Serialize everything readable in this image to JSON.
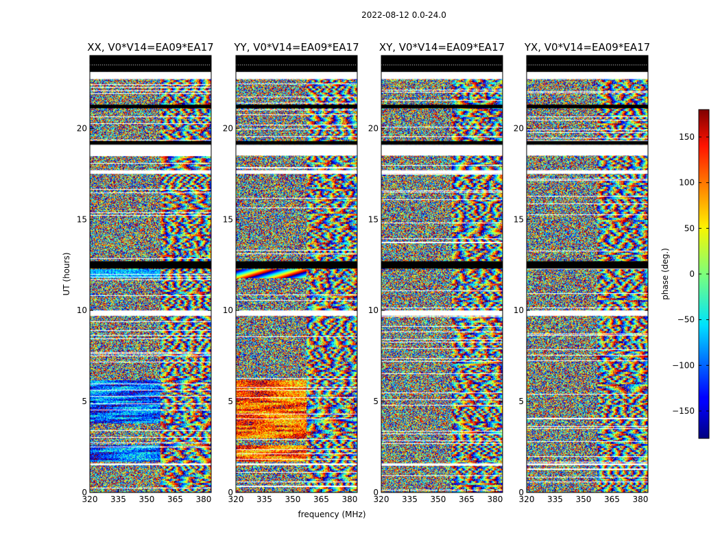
{
  "chart_data": {
    "type": "heatmap",
    "suptitle": "2022-08-12 0.0-24.0",
    "xlabel": "frequency (MHz)",
    "ylabel": "UT (hours)",
    "xlim": [
      320,
      384
    ],
    "ylim": [
      0,
      24
    ],
    "xticks": [
      320,
      335,
      350,
      365,
      380
    ],
    "yticks": [
      0,
      5,
      10,
      15,
      20
    ],
    "colorbar": {
      "label": "phase (deg.)",
      "range": [
        -180,
        180
      ],
      "ticks": [
        -150,
        -100,
        -50,
        0,
        50,
        100,
        150
      ],
      "tick_labels": [
        "−150",
        "−100",
        "−50",
        "0",
        "50",
        "100",
        "150"
      ],
      "colormap": "jet"
    },
    "dark_time_bands": [
      [
        23.1,
        24.0
      ],
      [
        12.3,
        12.7
      ],
      [
        19.1,
        19.3
      ],
      [
        21.1,
        21.3
      ]
    ],
    "missing_time_bands": [
      [
        22.7,
        23.1
      ],
      [
        18.5,
        19.1
      ],
      [
        17.5,
        17.7
      ],
      [
        9.7,
        10.0
      ],
      [
        1.5,
        1.6
      ]
    ],
    "panels": [
      {
        "title": "XX, V0*V14=EA09*EA17"
      },
      {
        "title": "YY, V0*V14=EA09*EA17"
      },
      {
        "title": "XY, V0*V14=EA09*EA17"
      },
      {
        "title": "YX, V0*V14=EA09*EA17"
      }
    ]
  }
}
